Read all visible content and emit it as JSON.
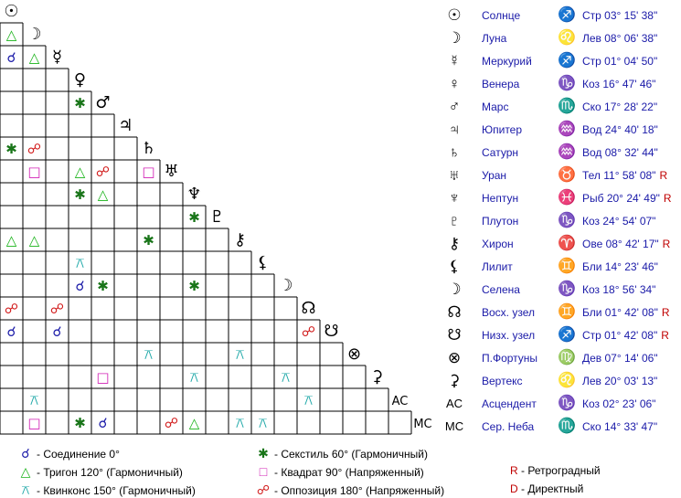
{
  "colors": {
    "conjunction": "#1a1aa8",
    "trine": "#19b319",
    "sextile": "#197519",
    "square": "#d11fb5",
    "quincunx": "#19a6a6",
    "opposition": "#d11919",
    "text_blue": "#1a1aa8",
    "retro_red": "#c00000"
  },
  "aspect_symbols": {
    "conjunction": "☌",
    "trine": "△",
    "quincunx": "⚻",
    "sextile": "✱",
    "square": "□",
    "opposition": "☍"
  },
  "planets": [
    {
      "glyph": "☉",
      "name": "Солнце",
      "sign_glyph": "♐",
      "position": "Стр 03° 15' 38\"",
      "retro": ""
    },
    {
      "glyph": "☽",
      "name": "Луна",
      "sign_glyph": "♌",
      "position": "Лев 08° 06' 38\"",
      "retro": ""
    },
    {
      "glyph": "☿",
      "name": "Меркурий",
      "sign_glyph": "♐",
      "position": "Стр 01° 04' 50\"",
      "retro": ""
    },
    {
      "glyph": "♀",
      "name": "Венера",
      "sign_glyph": "♑",
      "position": "Коз 16° 47' 46\"",
      "retro": ""
    },
    {
      "glyph": "♂",
      "name": "Марс",
      "sign_glyph": "♏",
      "position": "Ско 17° 28' 22\"",
      "retro": ""
    },
    {
      "glyph": "♃",
      "name": "Юпитер",
      "sign_glyph": "♒",
      "position": "Вод 24° 40' 18\"",
      "retro": ""
    },
    {
      "glyph": "♄",
      "name": "Сатурн",
      "sign_glyph": "♒",
      "position": "Вод 08° 32' 44\"",
      "retro": ""
    },
    {
      "glyph": "♅",
      "name": "Уран",
      "sign_glyph": "♉",
      "position": "Тел 11° 58' 08\"",
      "retro": "R"
    },
    {
      "glyph": "♆",
      "name": "Нептун",
      "sign_glyph": "♓",
      "position": "Рыб 20° 24' 49\"",
      "retro": "R"
    },
    {
      "glyph": "♇",
      "name": "Плутон",
      "sign_glyph": "♑",
      "position": "Коз 24° 54' 07\"",
      "retro": ""
    },
    {
      "glyph": "⚷",
      "name": "Хирон",
      "sign_glyph": "♈",
      "position": "Ове 08° 42' 17\"",
      "retro": "R"
    },
    {
      "glyph": "⚸",
      "name": "Лилит",
      "sign_glyph": "♊",
      "position": "Бли 14° 23' 46\"",
      "retro": ""
    },
    {
      "glyph": "☽",
      "name": "Селена",
      "sign_glyph": "♑",
      "position": "Коз 18° 56' 34\"",
      "retro": ""
    },
    {
      "glyph": "☊",
      "name": "Восх. узел",
      "sign_glyph": "♊",
      "position": "Бли 01° 42' 08\"",
      "retro": "R"
    },
    {
      "glyph": "☋",
      "name": "Низх. узел",
      "sign_glyph": "♐",
      "position": "Стр 01° 42' 08\"",
      "retro": "R"
    },
    {
      "glyph": "⊗",
      "name": "П.Фортуны",
      "sign_glyph": "♍",
      "position": "Дев 07° 14' 06\"",
      "retro": ""
    },
    {
      "glyph": "⚳",
      "name": "Вертекс",
      "sign_glyph": "♌",
      "position": "Лев 20° 03' 13\"",
      "retro": ""
    },
    {
      "glyph": "AC",
      "name": "Асцендент",
      "sign_glyph": "♑",
      "position": "Коз 02° 23' 06\"",
      "retro": ""
    },
    {
      "glyph": "MC",
      "name": "Сер. Неба",
      "sign_glyph": "♏",
      "position": "Ско 14° 33' 47\"",
      "retro": ""
    }
  ],
  "aspects": [
    [
      1,
      0,
      "trine"
    ],
    [
      2,
      0,
      "conjunction"
    ],
    [
      2,
      1,
      "trine"
    ],
    [
      4,
      3,
      "sextile"
    ],
    [
      6,
      0,
      "sextile"
    ],
    [
      6,
      1,
      "opposition"
    ],
    [
      7,
      1,
      "square"
    ],
    [
      7,
      3,
      "trine"
    ],
    [
      7,
      4,
      "opposition"
    ],
    [
      7,
      6,
      "square"
    ],
    [
      8,
      3,
      "sextile"
    ],
    [
      8,
      4,
      "trine"
    ],
    [
      9,
      8,
      "sextile"
    ],
    [
      10,
      0,
      "trine"
    ],
    [
      10,
      1,
      "trine"
    ],
    [
      10,
      6,
      "sextile"
    ],
    [
      11,
      3,
      "quincunx"
    ],
    [
      12,
      3,
      "conjunction"
    ],
    [
      12,
      4,
      "sextile"
    ],
    [
      12,
      8,
      "sextile"
    ],
    [
      13,
      0,
      "opposition"
    ],
    [
      13,
      2,
      "opposition"
    ],
    [
      14,
      0,
      "conjunction"
    ],
    [
      14,
      2,
      "conjunction"
    ],
    [
      14,
      13,
      "opposition"
    ],
    [
      15,
      6,
      "quincunx"
    ],
    [
      15,
      10,
      "quincunx"
    ],
    [
      16,
      4,
      "square"
    ],
    [
      16,
      8,
      "quincunx"
    ],
    [
      16,
      12,
      "quincunx"
    ],
    [
      17,
      1,
      "quincunx"
    ],
    [
      17,
      13,
      "quincunx"
    ],
    [
      18,
      1,
      "square"
    ],
    [
      18,
      3,
      "sextile"
    ],
    [
      18,
      4,
      "conjunction"
    ],
    [
      18,
      7,
      "opposition"
    ],
    [
      18,
      8,
      "trine"
    ],
    [
      18,
      10,
      "quincunx"
    ],
    [
      18,
      11,
      "quincunx"
    ]
  ],
  "legend": {
    "conjunction": "- Соединение 0°",
    "trine": "- Тригон 120° (Гармоничный)",
    "quincunx": "- Квинконс 150° (Гармоничный)",
    "sextile": "- Секстиль 60° (Гармоничный)",
    "square": "- Квадрат 90° (Напряженный)",
    "opposition": "- Оппозиция 180° (Напряженный)",
    "retro_letter": "R",
    "retro_text": "- Ретроградный",
    "direct_letter": "D",
    "direct_text": "- Директный"
  },
  "chart_data": {
    "type": "table",
    "rows": [
      "Солнце",
      "Луна",
      "Меркурий",
      "Венера",
      "Марс",
      "Юпитер",
      "Сатурн",
      "Уран",
      "Нептун",
      "Плутон",
      "Хирон",
      "Лилит",
      "Селена",
      "Восх. узел",
      "Низх. узел",
      "П.Фортуны",
      "Вертекс",
      "Асцендент",
      "Сер. Неба"
    ]
  }
}
